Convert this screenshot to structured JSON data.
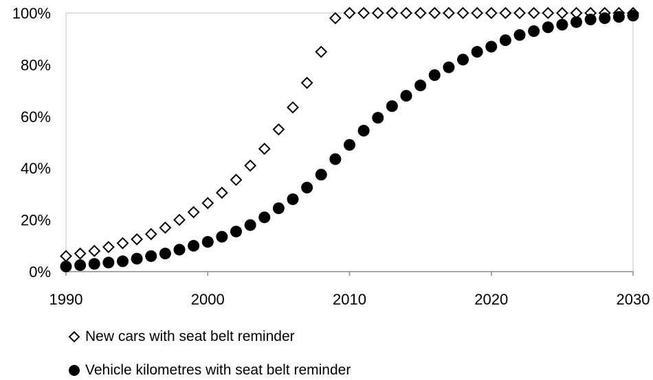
{
  "chart_data": {
    "type": "scatter",
    "title": "",
    "xlabel": "",
    "ylabel": "",
    "xlim": [
      1990,
      2030
    ],
    "ylim": [
      0,
      100
    ],
    "x_ticks": [
      1990,
      2000,
      2010,
      2020,
      2030
    ],
    "y_ticks": [
      0,
      20,
      40,
      60,
      80,
      100
    ],
    "x_tick_labels": [
      "1990",
      "2000",
      "2010",
      "2020",
      "2030"
    ],
    "y_tick_labels": [
      "0%",
      "20%",
      "40%",
      "60%",
      "80%",
      "100%"
    ],
    "y_unit": "%",
    "grid": false,
    "legend_position": "bottom",
    "x": [
      1990,
      1991,
      1992,
      1993,
      1994,
      1995,
      1996,
      1997,
      1998,
      1999,
      2000,
      2001,
      2002,
      2003,
      2004,
      2005,
      2006,
      2007,
      2008,
      2009,
      2010,
      2011,
      2012,
      2013,
      2014,
      2015,
      2016,
      2017,
      2018,
      2019,
      2020,
      2021,
      2022,
      2023,
      2024,
      2025,
      2026,
      2027,
      2028,
      2029,
      2030
    ],
    "series": [
      {
        "name": "New cars with seat belt reminder",
        "marker": "open-diamond",
        "color": "#000000",
        "values": [
          6,
          7,
          8,
          9.5,
          11,
          12.5,
          14.5,
          17,
          20,
          23,
          26.5,
          30.5,
          35.5,
          41,
          47.5,
          55,
          63.5,
          73,
          85,
          98,
          100,
          100,
          100,
          100,
          100,
          100,
          100,
          100,
          100,
          100,
          100,
          100,
          100,
          100,
          100,
          100,
          100,
          100,
          100,
          100,
          100
        ]
      },
      {
        "name": "Vehicle kilometres with seat belt reminder",
        "marker": "filled-circle",
        "color": "#000000",
        "values": [
          2,
          2.5,
          3,
          3.5,
          4,
          5,
          6,
          7,
          8.5,
          10,
          11.5,
          13.5,
          15.5,
          18,
          21,
          24.5,
          28,
          32.5,
          37.5,
          43.5,
          49,
          54.5,
          59.5,
          64,
          68,
          72,
          76,
          79,
          82,
          85,
          87,
          89.5,
          91.5,
          93,
          94.5,
          95.5,
          96.5,
          97.5,
          98,
          98.5,
          99
        ]
      }
    ]
  }
}
